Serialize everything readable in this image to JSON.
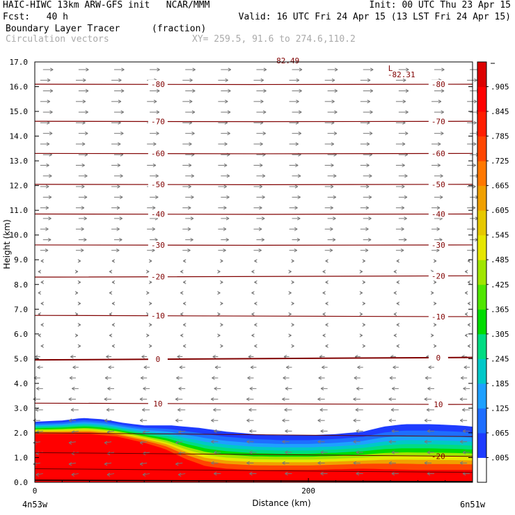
{
  "header": {
    "line1_left": "HAIC-HIWC 13km ARW-GFS init   NCAR/MMM",
    "line1_right": "Init: 00 UTC Thu 23 Apr 15",
    "line2_left": "Fcst:   40 h",
    "line2_right": "Valid: 16 UTC Fri 24 Apr 15 (13 LST Fri 24 Apr 15)",
    "line3_left": "Boundary Layer Tracer",
    "line3_mid": "(fraction)",
    "line4_left": "Circulation vectors",
    "line4_mid": "XY= 259.5, 91.6 to 274.6,110.2"
  },
  "chart_data": {
    "type": "heatmap",
    "title": "Boundary Layer Tracer",
    "units": "(fraction)",
    "xlabel": "Distance (km)",
    "ylabel": "Height (km)",
    "xlim": [
      0,
      320
    ],
    "ylim": [
      0,
      17
    ],
    "x_ticks": [
      0,
      200
    ],
    "x_end_labels": [
      "4n53w",
      "6n51w"
    ],
    "y_ticks": [
      "0.0",
      "1.0",
      "2.0",
      "3.0",
      "4.0",
      "5.0",
      "6.0",
      "7.0",
      "8.0",
      "9.0",
      "10.0",
      "11.0",
      "12.0",
      "13.0",
      "14.0",
      "15.0",
      "16.0",
      "17.0"
    ],
    "colorbar_labels": [
      ".005",
      ".065",
      ".125",
      ".185",
      ".245",
      ".305",
      ".365",
      ".425",
      ".485",
      ".545",
      ".605",
      ".665",
      ".725",
      ".785",
      ".845",
      ".905"
    ],
    "colorbar_colors": [
      "#ffffff",
      "#1e3cff",
      "#1e6eff",
      "#1ea0ff",
      "#00c8c8",
      "#00dc82",
      "#00dc00",
      "#50e600",
      "#a0e600",
      "#e6e600",
      "#e6c800",
      "#f0a000",
      "#ff7800",
      "#ff4600",
      "#ff1e00",
      "#ff0000",
      "#dc0000"
    ],
    "tracer_top_km": [
      [
        0,
        2.45
      ],
      [
        20,
        2.5
      ],
      [
        35,
        2.6
      ],
      [
        50,
        2.55
      ],
      [
        65,
        2.4
      ],
      [
        80,
        2.3
      ],
      [
        100,
        2.3
      ],
      [
        120,
        2.2
      ],
      [
        140,
        2.05
      ],
      [
        160,
        1.95
      ],
      [
        180,
        1.9
      ],
      [
        200,
        1.9
      ],
      [
        220,
        1.95
      ],
      [
        240,
        2.05
      ],
      [
        255,
        2.25
      ],
      [
        270,
        2.35
      ],
      [
        290,
        2.35
      ],
      [
        310,
        2.3
      ],
      [
        320,
        2.25
      ]
    ],
    "tracer_red_top_km": [
      [
        0,
        1.95
      ],
      [
        20,
        1.95
      ],
      [
        40,
        1.95
      ],
      [
        60,
        1.85
      ],
      [
        80,
        1.6
      ],
      [
        95,
        1.35
      ],
      [
        110,
        0.95
      ],
      [
        125,
        0.65
      ],
      [
        140,
        0.55
      ],
      [
        160,
        0.5
      ],
      [
        200,
        0.5
      ],
      [
        240,
        0.55
      ],
      [
        280,
        0.5
      ],
      [
        320,
        0.5
      ]
    ],
    "isotherms": [
      {
        "value": 10,
        "label": "10",
        "km": [
          3.2,
          3.15
        ],
        "label_x": [
          90,
          295
        ]
      },
      {
        "value": 0,
        "label": "0",
        "km": [
          4.95,
          5.05
        ],
        "label_x": [
          90,
          295
        ]
      },
      {
        "value": -10,
        "label": "-10",
        "km": [
          6.75,
          6.7
        ],
        "label_x": [
          90,
          295
        ]
      },
      {
        "value": -20,
        "label": "-20",
        "km": [
          8.3,
          8.35
        ],
        "label_x": [
          90,
          295
        ]
      },
      {
        "value": -30,
        "label": "-30",
        "km": [
          9.6,
          9.6
        ],
        "label_x": [
          90,
          295
        ]
      },
      {
        "value": -40,
        "label": "-40",
        "km": [
          10.85,
          10.85
        ],
        "label_x": [
          90,
          295
        ]
      },
      {
        "value": -50,
        "label": "-50",
        "km": [
          12.05,
          12.05
        ],
        "label_x": [
          90,
          295
        ]
      },
      {
        "value": -60,
        "label": "-60",
        "km": [
          13.3,
          13.3
        ],
        "label_x": [
          90,
          295
        ]
      },
      {
        "value": -70,
        "label": "-70",
        "km": [
          14.6,
          14.6
        ],
        "label_x": [
          90,
          295
        ]
      },
      {
        "value": -80,
        "label": "-80",
        "km": [
          16.1,
          16.1
        ],
        "label_x": [
          90,
          295
        ]
      }
    ],
    "annotations": [
      {
        "text": "L",
        "x": 260,
        "y": 16.75
      },
      {
        "text": "-82.31",
        "x": 268,
        "y": 16.5
      },
      {
        "text": "82.49",
        "x": 185,
        "y": 17.05
      },
      {
        "text": "-20",
        "x": 295,
        "y": 1.05
      }
    ]
  }
}
